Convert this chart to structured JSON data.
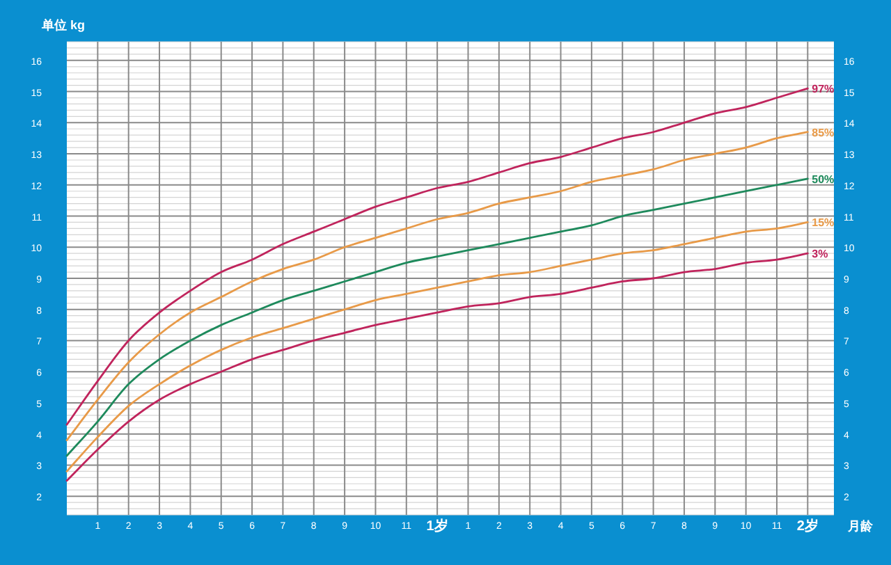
{
  "chart_data": {
    "type": "line",
    "ylabel": "单位 kg",
    "xlabel": "月龄",
    "categories": [
      null,
      "1",
      "2",
      "3",
      "4",
      "5",
      "6",
      "7",
      "8",
      "9",
      "10",
      "11",
      "1岁",
      "1",
      "2",
      "3",
      "4",
      "5",
      "6",
      "7",
      "8",
      "9",
      "10",
      "11",
      "2岁"
    ],
    "series": [
      {
        "name": "97%",
        "color": "#c0245c",
        "values": [
          4.3,
          5.7,
          7.0,
          7.9,
          8.6,
          9.2,
          9.6,
          10.1,
          10.5,
          10.9,
          11.3,
          11.6,
          11.9,
          12.1,
          12.4,
          12.7,
          12.9,
          13.2,
          13.5,
          13.7,
          14.0,
          14.3,
          14.5,
          14.8,
          15.1
        ]
      },
      {
        "name": "85%",
        "color": "#e89a48",
        "values": [
          3.8,
          5.1,
          6.3,
          7.2,
          7.9,
          8.4,
          8.9,
          9.3,
          9.6,
          10.0,
          10.3,
          10.6,
          10.9,
          11.1,
          11.4,
          11.6,
          11.8,
          12.1,
          12.3,
          12.5,
          12.8,
          13.0,
          13.2,
          13.5,
          13.7
        ]
      },
      {
        "name": "50%",
        "color": "#1e8a5c",
        "values": [
          3.3,
          4.4,
          5.6,
          6.4,
          7.0,
          7.5,
          7.9,
          8.3,
          8.6,
          8.9,
          9.2,
          9.5,
          9.7,
          9.9,
          10.1,
          10.3,
          10.5,
          10.7,
          11.0,
          11.2,
          11.4,
          11.6,
          11.8,
          12.0,
          12.2
        ]
      },
      {
        "name": "15%",
        "color": "#e89a48",
        "values": [
          2.8,
          3.9,
          4.9,
          5.6,
          6.2,
          6.7,
          7.1,
          7.4,
          7.7,
          8.0,
          8.3,
          8.5,
          8.7,
          8.9,
          9.1,
          9.2,
          9.4,
          9.6,
          9.8,
          9.9,
          10.1,
          10.3,
          10.5,
          10.6,
          10.8
        ]
      },
      {
        "name": "3%",
        "color": "#c0245c",
        "values": [
          2.5,
          3.5,
          4.4,
          5.1,
          5.6,
          6.0,
          6.4,
          6.7,
          7.0,
          7.25,
          7.5,
          7.7,
          7.9,
          8.1,
          8.2,
          8.4,
          8.5,
          8.7,
          8.9,
          9.0,
          9.2,
          9.3,
          9.5,
          9.6,
          9.8
        ]
      }
    ],
    "ylim": [
      1.4,
      16.6
    ],
    "yticks": [
      2,
      3,
      4,
      5,
      6,
      7,
      8,
      9,
      10,
      11,
      12,
      13,
      14,
      15,
      16
    ],
    "y2lim": [
      1.4,
      16.6
    ],
    "y2ticks": [
      2,
      3,
      4,
      5,
      6,
      7,
      8,
      9,
      10,
      11,
      12,
      13,
      14,
      15,
      16
    ],
    "grid": true
  }
}
